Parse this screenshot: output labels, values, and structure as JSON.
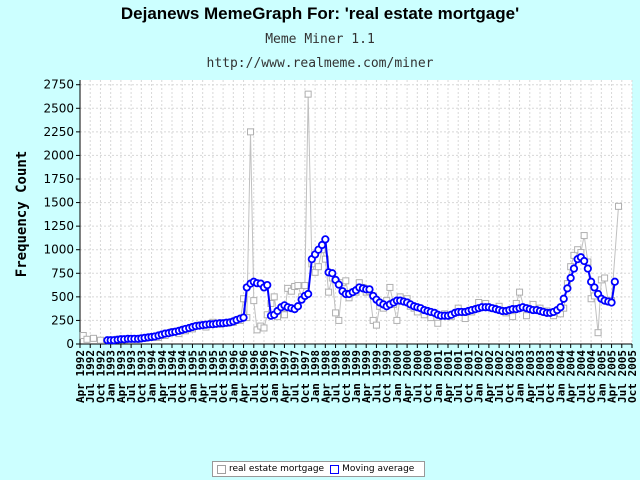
{
  "page": {
    "title": "Dejanews MemeGraph For: 'real estate mortgage'",
    "subtitle1": "Meme Miner 1.1",
    "subtitle2": "http://www.realmeme.com/miner"
  },
  "colors": {
    "background": "#ccffff",
    "plot_background": "#ffffff",
    "raw_series": "#c0c0c0",
    "moving_average": "#0000ff"
  },
  "chart_data": {
    "type": "line",
    "title": "Dejanews MemeGraph For: 'real estate mortgage'",
    "ylabel": "Frequency Count",
    "xlabel": "",
    "ylim": [
      0,
      2800
    ],
    "yticks": [
      0,
      250,
      500,
      750,
      1000,
      1250,
      1500,
      1750,
      2000,
      2250,
      2500,
      2750
    ],
    "xlim": [
      1992.25,
      2005.75
    ],
    "xtick_labels": [
      "Apr 1992",
      "Jul 1992",
      "Oct 1992",
      "Jan 1993",
      "Apr 1993",
      "Jul 1993",
      "Oct 1993",
      "Jan 1994",
      "Apr 1994",
      "Jul 1994",
      "Oct 1994",
      "Jan 1995",
      "Apr 1995",
      "Jul 1995",
      "Oct 1995",
      "Jan 1996",
      "Apr 1996",
      "Jul 1996",
      "Oct 1996",
      "Jan 1997",
      "Apr 1997",
      "Jul 1997",
      "Oct 1997",
      "Jan 1998",
      "Apr 1998",
      "Jul 1998",
      "Oct 1998",
      "Jan 1999",
      "Apr 1999",
      "Jul 1999",
      "Oct 1999",
      "Jan 2000",
      "Apr 2000",
      "Jul 2000",
      "Oct 2000",
      "Jan 2001",
      "Apr 2001",
      "Jul 2001",
      "Oct 2001",
      "Jan 2002",
      "Apr 2002",
      "Jul 2002",
      "Oct 2002",
      "Jan 2003",
      "Apr 2003",
      "Jul 2003",
      "Oct 2003",
      "Jan 2004",
      "Apr 2004",
      "Jul 2004",
      "Oct 2004",
      "Jan 2005",
      "Apr 2005",
      "Jul 2005",
      "Oct 2005"
    ],
    "grid": true,
    "legend_position": "bottom-center",
    "series": [
      {
        "name": "real estate mortgage",
        "color": "#c0c0c0",
        "marker": "square",
        "points": [
          [
            1992.33,
            90
          ],
          [
            1992.42,
            50
          ],
          [
            1992.58,
            60
          ],
          [
            1992.75,
            40
          ],
          [
            1993.0,
            40
          ],
          [
            1993.17,
            50
          ],
          [
            1993.33,
            45
          ],
          [
            1993.5,
            55
          ],
          [
            1993.67,
            50
          ],
          [
            1993.83,
            60
          ],
          [
            1994.0,
            70
          ],
          [
            1994.17,
            70
          ],
          [
            1994.33,
            90
          ],
          [
            1994.5,
            130
          ],
          [
            1994.67,
            110
          ],
          [
            1994.83,
            140
          ],
          [
            1995.0,
            160
          ],
          [
            1995.17,
            200
          ],
          [
            1995.33,
            180
          ],
          [
            1995.5,
            230
          ],
          [
            1995.67,
            210
          ],
          [
            1995.83,
            220
          ],
          [
            1996.0,
            230
          ],
          [
            1996.17,
            250
          ],
          [
            1996.25,
            480
          ],
          [
            1996.33,
            280
          ],
          [
            1996.42,
            2250
          ],
          [
            1996.5,
            460
          ],
          [
            1996.58,
            150
          ],
          [
            1996.67,
            190
          ],
          [
            1996.75,
            170
          ],
          [
            1996.83,
            310
          ],
          [
            1996.92,
            430
          ],
          [
            1997.0,
            500
          ],
          [
            1997.08,
            290
          ],
          [
            1997.17,
            350
          ],
          [
            1997.25,
            310
          ],
          [
            1997.33,
            590
          ],
          [
            1997.42,
            560
          ],
          [
            1997.5,
            610
          ],
          [
            1997.58,
            620
          ],
          [
            1997.67,
            500
          ],
          [
            1997.75,
            620
          ],
          [
            1997.83,
            2650
          ],
          [
            1997.92,
            850
          ],
          [
            1998.0,
            760
          ],
          [
            1998.08,
            820
          ],
          [
            1998.17,
            1000
          ],
          [
            1998.25,
            900
          ],
          [
            1998.33,
            550
          ],
          [
            1998.42,
            700
          ],
          [
            1998.5,
            330
          ],
          [
            1998.58,
            250
          ],
          [
            1998.67,
            650
          ],
          [
            1998.75,
            670
          ],
          [
            1998.83,
            490
          ],
          [
            1998.92,
            550
          ],
          [
            1999.0,
            550
          ],
          [
            1999.08,
            650
          ],
          [
            1999.17,
            600
          ],
          [
            1999.25,
            550
          ],
          [
            1999.33,
            560
          ],
          [
            1999.42,
            250
          ],
          [
            1999.5,
            200
          ],
          [
            1999.58,
            400
          ],
          [
            1999.67,
            380
          ],
          [
            1999.75,
            460
          ],
          [
            1999.83,
            600
          ],
          [
            1999.92,
            420
          ],
          [
            2000.0,
            250
          ],
          [
            2000.08,
            500
          ],
          [
            2000.17,
            460
          ],
          [
            2000.25,
            480
          ],
          [
            2000.33,
            400
          ],
          [
            2000.42,
            380
          ],
          [
            2000.5,
            340
          ],
          [
            2000.67,
            310
          ],
          [
            2000.83,
            280
          ],
          [
            2001.0,
            220
          ],
          [
            2001.17,
            320
          ],
          [
            2001.33,
            290
          ],
          [
            2001.5,
            380
          ],
          [
            2001.67,
            270
          ],
          [
            2001.83,
            340
          ],
          [
            2002.0,
            440
          ],
          [
            2002.17,
            430
          ],
          [
            2002.33,
            380
          ],
          [
            2002.5,
            400
          ],
          [
            2002.67,
            330
          ],
          [
            2002.83,
            290
          ],
          [
            2002.92,
            430
          ],
          [
            2003.0,
            550
          ],
          [
            2003.17,
            300
          ],
          [
            2003.33,
            420
          ],
          [
            2003.5,
            380
          ],
          [
            2003.67,
            350
          ],
          [
            2003.83,
            300
          ],
          [
            2004.0,
            320
          ],
          [
            2004.08,
            380
          ],
          [
            2004.17,
            640
          ],
          [
            2004.25,
            820
          ],
          [
            2004.33,
            940
          ],
          [
            2004.42,
            1000
          ],
          [
            2004.5,
            970
          ],
          [
            2004.58,
            1150
          ],
          [
            2004.67,
            870
          ],
          [
            2004.75,
            480
          ],
          [
            2004.83,
            510
          ],
          [
            2004.92,
            120
          ],
          [
            2005.0,
            680
          ],
          [
            2005.08,
            700
          ],
          [
            2005.17,
            450
          ],
          [
            2005.25,
            460
          ],
          [
            2005.42,
            1460
          ]
        ]
      },
      {
        "name": "Moving average",
        "color": "#0000ff",
        "marker": "circle",
        "points": [
          [
            1992.92,
            40
          ],
          [
            1993.0,
            40
          ],
          [
            1993.08,
            40
          ],
          [
            1993.17,
            45
          ],
          [
            1993.25,
            50
          ],
          [
            1993.33,
            50
          ],
          [
            1993.42,
            55
          ],
          [
            1993.5,
            55
          ],
          [
            1993.58,
            55
          ],
          [
            1993.67,
            55
          ],
          [
            1993.75,
            60
          ],
          [
            1993.83,
            65
          ],
          [
            1993.92,
            70
          ],
          [
            1994.0,
            75
          ],
          [
            1994.08,
            80
          ],
          [
            1994.17,
            90
          ],
          [
            1994.25,
            100
          ],
          [
            1994.33,
            110
          ],
          [
            1994.42,
            115
          ],
          [
            1994.5,
            125
          ],
          [
            1994.58,
            130
          ],
          [
            1994.67,
            140
          ],
          [
            1994.75,
            150
          ],
          [
            1994.83,
            160
          ],
          [
            1994.92,
            170
          ],
          [
            1995.0,
            180
          ],
          [
            1995.08,
            190
          ],
          [
            1995.17,
            195
          ],
          [
            1995.25,
            200
          ],
          [
            1995.33,
            205
          ],
          [
            1995.42,
            210
          ],
          [
            1995.5,
            210
          ],
          [
            1995.58,
            215
          ],
          [
            1995.67,
            220
          ],
          [
            1995.75,
            220
          ],
          [
            1995.83,
            225
          ],
          [
            1995.92,
            230
          ],
          [
            1996.0,
            240
          ],
          [
            1996.08,
            255
          ],
          [
            1996.17,
            270
          ],
          [
            1996.25,
            280
          ],
          [
            1996.33,
            600
          ],
          [
            1996.42,
            640
          ],
          [
            1996.5,
            660
          ],
          [
            1996.58,
            645
          ],
          [
            1996.67,
            640
          ],
          [
            1996.75,
            600
          ],
          [
            1996.83,
            625
          ],
          [
            1996.92,
            300
          ],
          [
            1997.0,
            310
          ],
          [
            1997.08,
            350
          ],
          [
            1997.17,
            390
          ],
          [
            1997.25,
            410
          ],
          [
            1997.33,
            390
          ],
          [
            1997.42,
            380
          ],
          [
            1997.5,
            370
          ],
          [
            1997.58,
            400
          ],
          [
            1997.67,
            470
          ],
          [
            1997.75,
            510
          ],
          [
            1997.83,
            530
          ],
          [
            1997.92,
            900
          ],
          [
            1998.0,
            950
          ],
          [
            1998.08,
            1000
          ],
          [
            1998.17,
            1050
          ],
          [
            1998.25,
            1110
          ],
          [
            1998.33,
            760
          ],
          [
            1998.42,
            750
          ],
          [
            1998.5,
            680
          ],
          [
            1998.58,
            630
          ],
          [
            1998.67,
            560
          ],
          [
            1998.75,
            530
          ],
          [
            1998.83,
            530
          ],
          [
            1998.92,
            550
          ],
          [
            1999.0,
            570
          ],
          [
            1999.08,
            600
          ],
          [
            1999.17,
            590
          ],
          [
            1999.25,
            580
          ],
          [
            1999.33,
            580
          ],
          [
            1999.42,
            510
          ],
          [
            1999.5,
            470
          ],
          [
            1999.58,
            440
          ],
          [
            1999.67,
            420
          ],
          [
            1999.75,
            400
          ],
          [
            1999.83,
            420
          ],
          [
            1999.92,
            440
          ],
          [
            2000.0,
            460
          ],
          [
            2000.08,
            460
          ],
          [
            2000.17,
            450
          ],
          [
            2000.25,
            440
          ],
          [
            2000.33,
            420
          ],
          [
            2000.42,
            400
          ],
          [
            2000.5,
            390
          ],
          [
            2000.58,
            380
          ],
          [
            2000.67,
            360
          ],
          [
            2000.75,
            350
          ],
          [
            2000.83,
            340
          ],
          [
            2000.92,
            330
          ],
          [
            2001.0,
            310
          ],
          [
            2001.08,
            300
          ],
          [
            2001.17,
            300
          ],
          [
            2001.25,
            300
          ],
          [
            2001.33,
            310
          ],
          [
            2001.42,
            330
          ],
          [
            2001.5,
            340
          ],
          [
            2001.58,
            340
          ],
          [
            2001.67,
            340
          ],
          [
            2001.75,
            350
          ],
          [
            2001.83,
            360
          ],
          [
            2001.92,
            370
          ],
          [
            2002.0,
            380
          ],
          [
            2002.08,
            390
          ],
          [
            2002.17,
            390
          ],
          [
            2002.25,
            390
          ],
          [
            2002.33,
            380
          ],
          [
            2002.42,
            370
          ],
          [
            2002.5,
            360
          ],
          [
            2002.58,
            350
          ],
          [
            2002.67,
            350
          ],
          [
            2002.75,
            360
          ],
          [
            2002.83,
            370
          ],
          [
            2002.92,
            370
          ],
          [
            2003.0,
            380
          ],
          [
            2003.08,
            390
          ],
          [
            2003.17,
            380
          ],
          [
            2003.25,
            370
          ],
          [
            2003.33,
            360
          ],
          [
            2003.42,
            360
          ],
          [
            2003.5,
            350
          ],
          [
            2003.58,
            340
          ],
          [
            2003.67,
            330
          ],
          [
            2003.75,
            330
          ],
          [
            2003.83,
            340
          ],
          [
            2003.92,
            360
          ],
          [
            2004.0,
            390
          ],
          [
            2004.08,
            480
          ],
          [
            2004.17,
            590
          ],
          [
            2004.25,
            700
          ],
          [
            2004.33,
            800
          ],
          [
            2004.42,
            900
          ],
          [
            2004.5,
            920
          ],
          [
            2004.58,
            880
          ],
          [
            2004.67,
            800
          ],
          [
            2004.75,
            660
          ],
          [
            2004.83,
            600
          ],
          [
            2004.92,
            530
          ],
          [
            2005.0,
            480
          ],
          [
            2005.08,
            460
          ],
          [
            2005.17,
            450
          ],
          [
            2005.25,
            440
          ],
          [
            2005.33,
            660
          ]
        ]
      }
    ]
  }
}
